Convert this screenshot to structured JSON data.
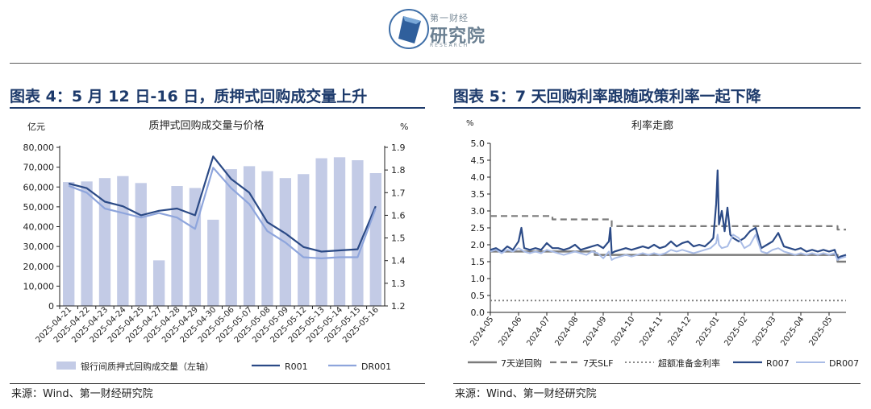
{
  "logo": {
    "name": "logo-icon",
    "line1": "第一财经",
    "line2": "研究院",
    "line3": "RESEARCH"
  },
  "colors": {
    "title": "#1d3a6b",
    "bar": "#c3cbe6",
    "r001": "#2b4a86",
    "dr001": "#8ea5dc",
    "reverse_repo": "#7b7b7b",
    "slf": "#7b7b7b",
    "excess_reserve": "#7b7b7b",
    "r007": "#2b4a86",
    "dr007": "#a9bce6"
  },
  "left_figure": {
    "heading": "图表 4：5 月 12 日-16 日，质押式回购成交量上升",
    "source": "来源：Wind、第一财经研究院"
  },
  "right_figure": {
    "heading": "图表 5：7 天回购利率跟随政策利率一起下降",
    "source": "来源：Wind、第一财经研究院"
  },
  "chart_data": [
    {
      "type": "bar",
      "title": "质押式回购成交量与价格",
      "left_unit": "亿元",
      "right_unit": "%",
      "categories": [
        "2025-04-21",
        "2025-04-22",
        "2025-04-23",
        "2025-04-24",
        "2025-04-25",
        "2025-04-27",
        "2025-04-28",
        "2025-04-29",
        "2025-04-30",
        "2025-05-06",
        "2025-05-07",
        "2025-05-08",
        "2025-05-09",
        "2025-05-12",
        "2025-05-13",
        "2025-05-14",
        "2025-05-15",
        "2025-05-16"
      ],
      "y_ticks": [
        "0",
        "10,000",
        "20,000",
        "30,000",
        "40,000",
        "50,000",
        "60,000",
        "70,000",
        "80,000"
      ],
      "y2_ticks": [
        "1.2",
        "1.3",
        "1.4",
        "1.5",
        "1.6",
        "1.7",
        "1.8",
        "1.9"
      ],
      "ylim": [
        0,
        80000
      ],
      "y2lim": [
        1.2,
        1.9
      ],
      "series": [
        {
          "name": "银行间质押式回购成交量（左轴）",
          "kind": "bar",
          "axis": "left",
          "values": [
            62500,
            62800,
            64500,
            65500,
            62000,
            23000,
            60500,
            59500,
            43500,
            69000,
            70500,
            68000,
            64500,
            66500,
            74500,
            75000,
            73500,
            67000
          ]
        },
        {
          "name": "R001",
          "kind": "line",
          "axis": "right",
          "values": [
            1.74,
            1.72,
            1.66,
            1.64,
            1.6,
            1.62,
            1.63,
            1.6,
            1.86,
            1.76,
            1.7,
            1.57,
            1.52,
            1.46,
            1.44,
            1.445,
            1.45,
            1.64
          ]
        },
        {
          "name": "DR001",
          "kind": "line",
          "axis": "right",
          "values": [
            1.73,
            1.7,
            1.63,
            1.61,
            1.59,
            1.61,
            1.59,
            1.54,
            1.81,
            1.72,
            1.65,
            1.53,
            1.48,
            1.415,
            1.41,
            1.415,
            1.415,
            1.63
          ]
        }
      ]
    },
    {
      "type": "line",
      "title": "利率走廊",
      "y_unit": "%",
      "x_ticks": [
        "2024-05",
        "2024-06",
        "2024-07",
        "2024-08",
        "2024-09",
        "2024-10",
        "2024-11",
        "2024-12",
        "2025-01",
        "2025-02",
        "2025-03",
        "2025-04",
        "2025-05"
      ],
      "y_ticks": [
        "0.0",
        "0.5",
        "1.0",
        "1.5",
        "2.0",
        "2.5",
        "3.0",
        "3.5",
        "4.0",
        "4.5",
        "5.0"
      ],
      "xlim": [
        0,
        12.6
      ],
      "ylim": [
        0,
        5.0
      ],
      "series": [
        {
          "name": "7天逆回购",
          "style": "solid-gray",
          "x": [
            0,
            3.7,
            3.7,
            12.3,
            12.3,
            12.6
          ],
          "y": [
            1.8,
            1.8,
            1.7,
            1.7,
            1.5,
            1.5
          ]
        },
        {
          "name": "7天SLF",
          "style": "dashed-gray",
          "x": [
            0,
            2.2,
            2.2,
            4.3,
            4.3,
            12.3,
            12.3,
            12.6
          ],
          "y": [
            2.85,
            2.85,
            2.75,
            2.75,
            2.55,
            2.55,
            2.45,
            2.45
          ]
        },
        {
          "name": "超额准备金利率",
          "style": "dotted-gray",
          "x": [
            0,
            12.6
          ],
          "y": [
            0.35,
            0.35
          ]
        },
        {
          "name": "R007",
          "style": "solid-dark",
          "x": [
            0,
            0.2,
            0.4,
            0.6,
            0.8,
            1.0,
            1.1,
            1.2,
            1.4,
            1.6,
            1.8,
            2.0,
            2.2,
            2.4,
            2.6,
            2.8,
            3.0,
            3.2,
            3.4,
            3.6,
            3.8,
            4.0,
            4.2,
            4.25,
            4.3,
            4.4,
            4.6,
            4.8,
            5.0,
            5.2,
            5.4,
            5.6,
            5.8,
            6.0,
            6.2,
            6.4,
            6.6,
            6.8,
            7.0,
            7.2,
            7.4,
            7.6,
            7.8,
            7.9,
            8.0,
            8.05,
            8.1,
            8.2,
            8.3,
            8.4,
            8.5,
            8.6,
            8.8,
            9.0,
            9.2,
            9.4,
            9.6,
            9.8,
            10.0,
            10.2,
            10.4,
            10.6,
            10.8,
            11.0,
            11.2,
            11.4,
            11.6,
            11.8,
            12.0,
            12.2,
            12.3,
            12.4,
            12.6
          ],
          "y": [
            1.85,
            1.9,
            1.8,
            1.95,
            1.85,
            2.1,
            2.5,
            1.9,
            1.85,
            1.9,
            1.85,
            2.05,
            1.9,
            1.9,
            1.85,
            1.9,
            2.0,
            1.85,
            1.9,
            1.95,
            2.0,
            1.9,
            2.1,
            2.5,
            1.75,
            1.8,
            1.85,
            1.9,
            1.85,
            1.9,
            1.95,
            1.9,
            2.0,
            1.9,
            1.95,
            2.1,
            1.95,
            2.05,
            2.1,
            1.95,
            2.0,
            1.95,
            2.1,
            2.2,
            3.2,
            4.2,
            2.6,
            3.0,
            2.4,
            3.1,
            2.3,
            2.2,
            2.1,
            2.2,
            2.4,
            2.5,
            1.9,
            2.0,
            2.1,
            2.35,
            1.95,
            1.9,
            1.85,
            1.9,
            1.8,
            1.85,
            1.8,
            1.85,
            1.8,
            1.85,
            1.6,
            1.65,
            1.7
          ]
        },
        {
          "name": "DR007",
          "style": "solid-light",
          "x": [
            0,
            0.2,
            0.4,
            0.6,
            0.8,
            1.0,
            1.2,
            1.4,
            1.6,
            1.8,
            2.0,
            2.2,
            2.4,
            2.6,
            2.8,
            3.0,
            3.2,
            3.4,
            3.6,
            3.8,
            4.0,
            4.2,
            4.3,
            4.4,
            4.6,
            4.8,
            5.0,
            5.2,
            5.4,
            5.6,
            5.8,
            6.0,
            6.2,
            6.4,
            6.6,
            6.8,
            7.0,
            7.2,
            7.4,
            7.6,
            7.8,
            8.0,
            8.05,
            8.1,
            8.2,
            8.4,
            8.6,
            8.8,
            9.0,
            9.2,
            9.4,
            9.6,
            9.8,
            10.0,
            10.2,
            10.4,
            10.6,
            10.8,
            11.0,
            11.2,
            11.4,
            11.6,
            11.8,
            12.0,
            12.2,
            12.3,
            12.4,
            12.6
          ],
          "y": [
            1.8,
            1.85,
            1.75,
            1.85,
            1.8,
            1.9,
            1.8,
            1.75,
            1.8,
            1.75,
            1.85,
            1.8,
            1.75,
            1.7,
            1.75,
            1.8,
            1.75,
            1.7,
            1.8,
            1.75,
            1.6,
            1.8,
            1.55,
            1.6,
            1.65,
            1.7,
            1.65,
            1.7,
            1.75,
            1.7,
            1.75,
            1.7,
            1.75,
            1.85,
            1.8,
            1.85,
            1.8,
            1.75,
            1.8,
            1.85,
            1.9,
            2.05,
            2.3,
            2.0,
            1.9,
            1.95,
            2.3,
            2.2,
            1.9,
            2.0,
            2.3,
            1.8,
            1.75,
            1.85,
            1.9,
            1.8,
            1.75,
            1.7,
            1.75,
            1.7,
            1.75,
            1.7,
            1.75,
            1.7,
            1.75,
            1.55,
            1.6,
            1.65
          ]
        }
      ]
    }
  ]
}
